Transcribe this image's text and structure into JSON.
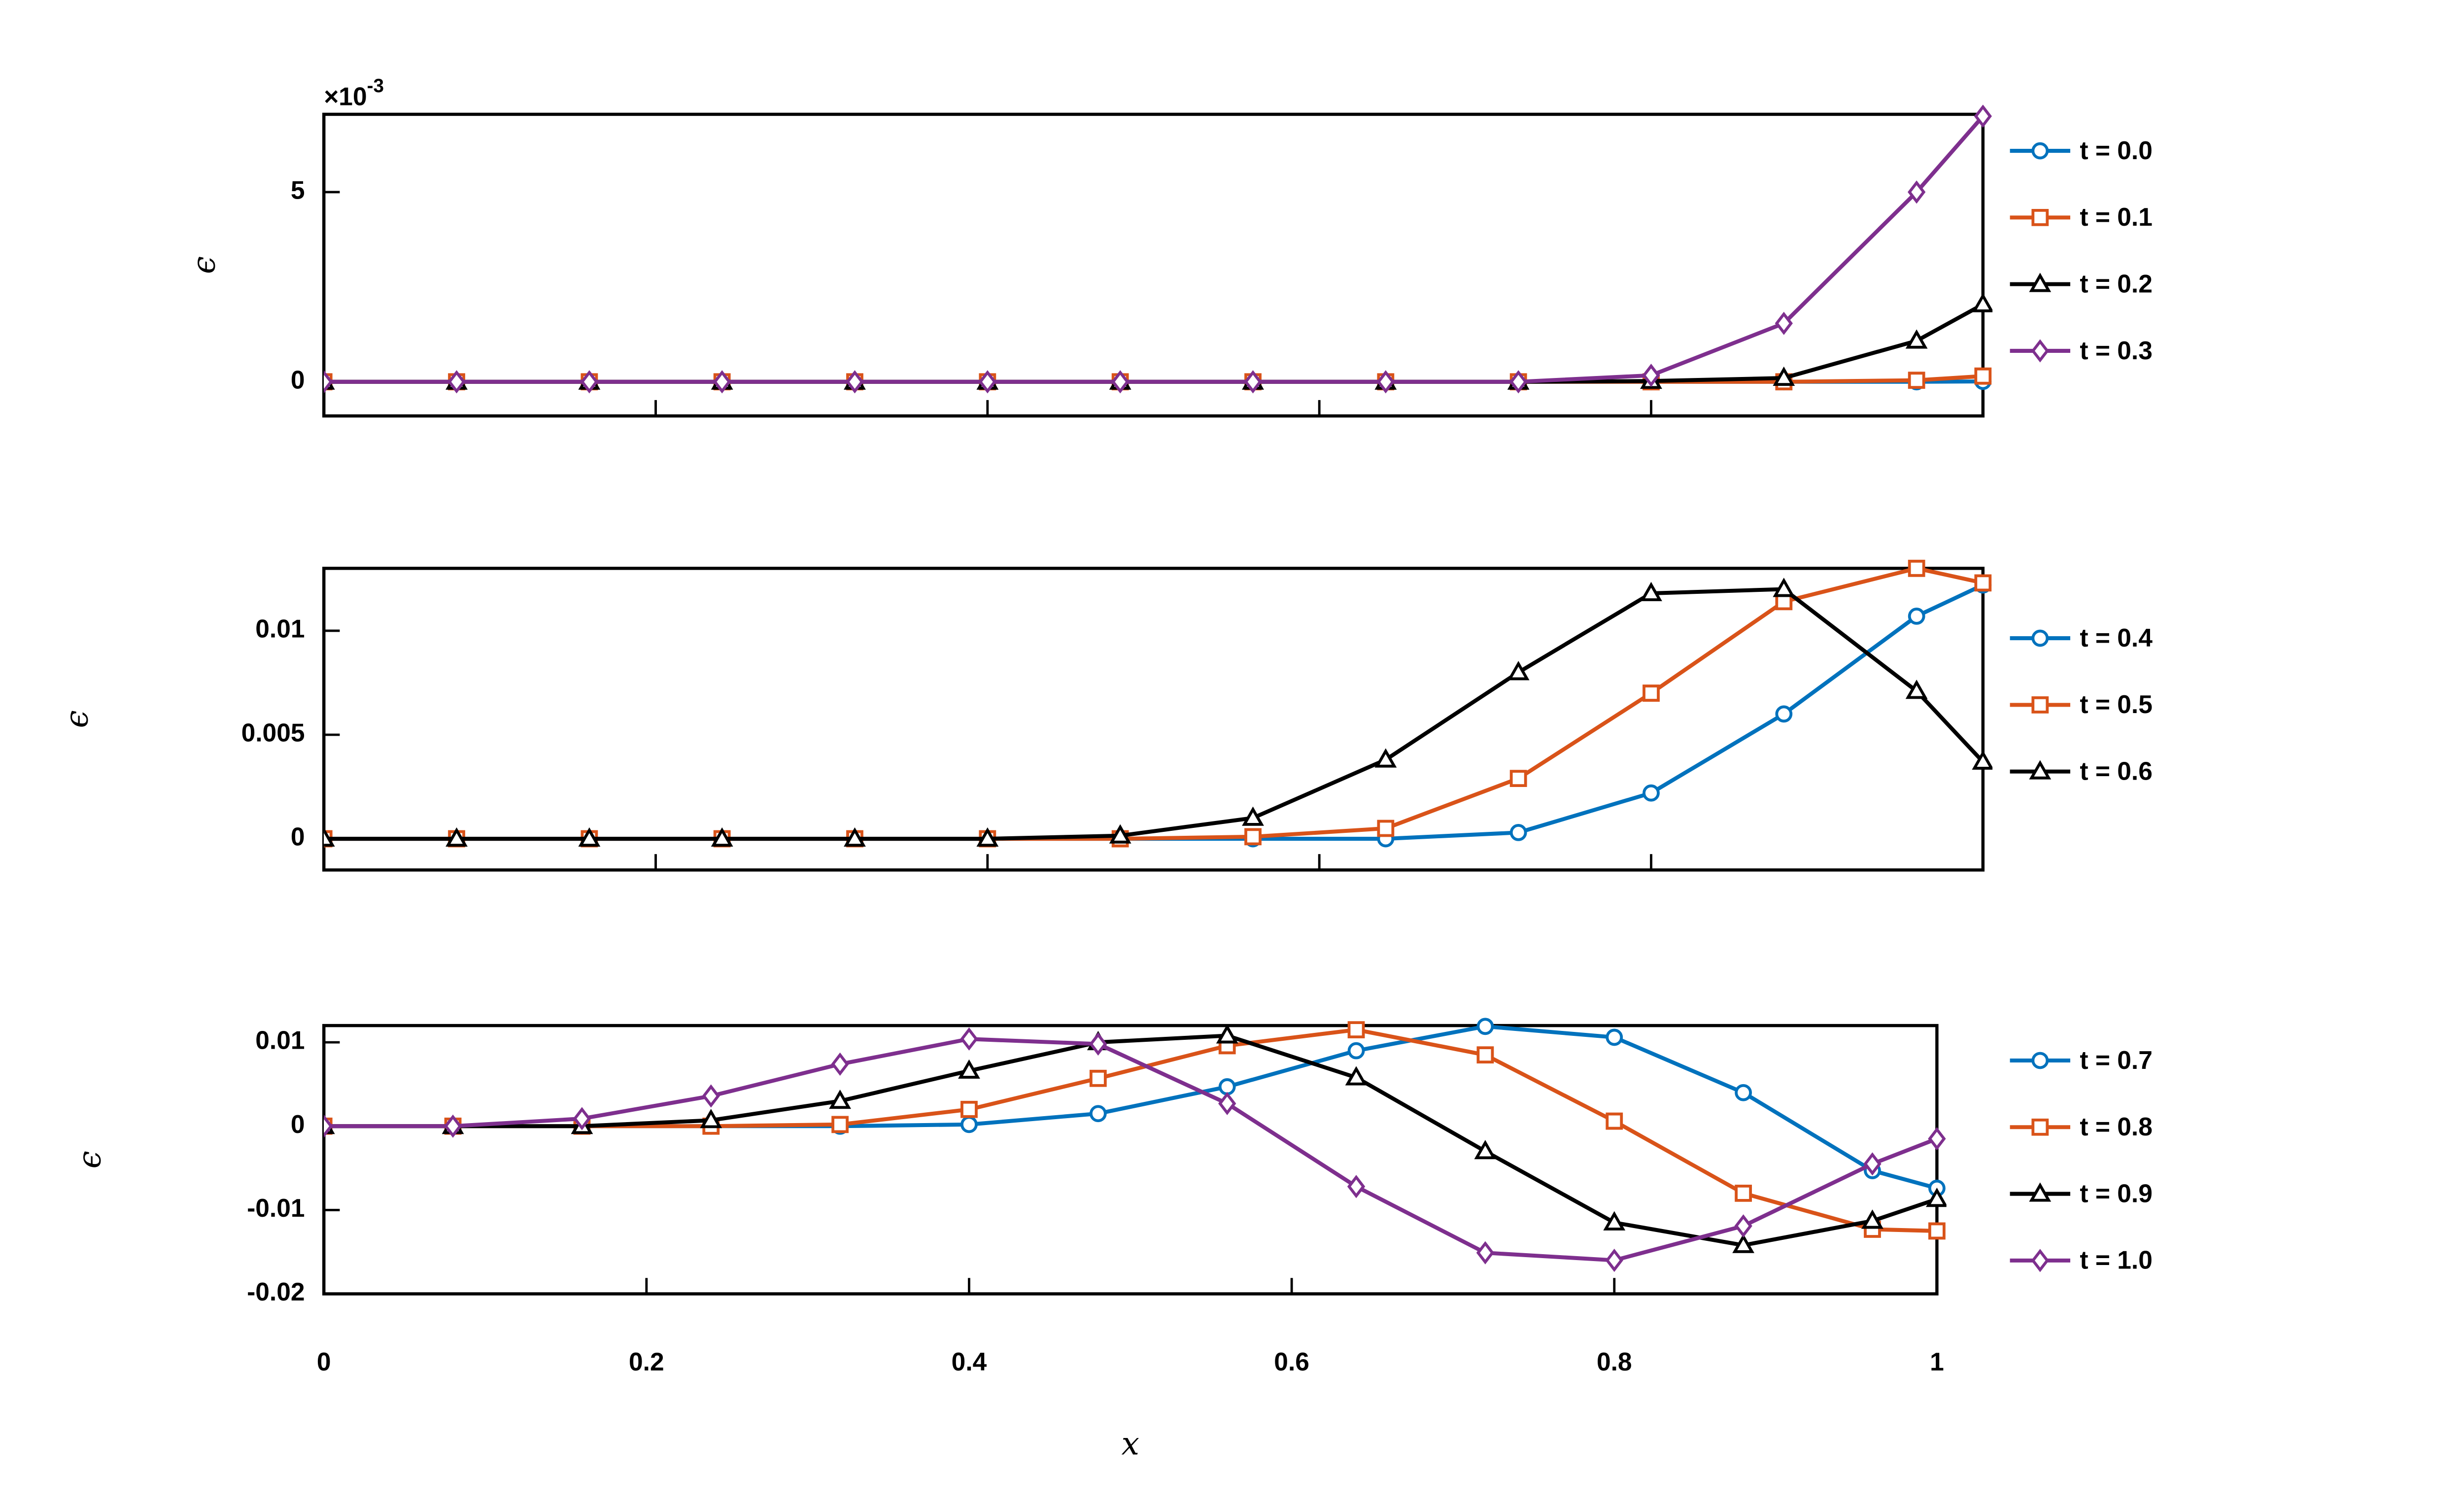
{
  "chart_data": [
    {
      "type": "line",
      "ylabel": "ϵ",
      "y_offset_text": {
        "base": "×10",
        "exponent": "-3"
      },
      "x": [
        0,
        0.08,
        0.16,
        0.24,
        0.32,
        0.4,
        0.48,
        0.56,
        0.64,
        0.72,
        0.8,
        0.88,
        0.96,
        1
      ],
      "xlim": [
        0,
        1
      ],
      "xticks": [
        0,
        0.2,
        0.4,
        0.6,
        0.8,
        1
      ],
      "show_xtick_labels": false,
      "ylim": [
        -0.9,
        7.05
      ],
      "yticks": [
        0,
        5
      ],
      "grid": false,
      "legend": "outside-right",
      "series": [
        {
          "name": "t = 0.0",
          "color": "#0072BD",
          "marker": "circle",
          "values": [
            0,
            0,
            0,
            0,
            0,
            0,
            0,
            0,
            0,
            0,
            0,
            0,
            0,
            0.01
          ]
        },
        {
          "name": "t = 0.1",
          "color": "#D95319",
          "marker": "square",
          "values": [
            0,
            0,
            0,
            0,
            0,
            0,
            0,
            0,
            0,
            0,
            0,
            0,
            0.04,
            0.15
          ]
        },
        {
          "name": "t = 0.2",
          "color": "#000000",
          "marker": "triangle",
          "values": [
            0,
            0,
            0,
            0,
            0,
            0,
            0,
            0,
            0,
            0,
            0.02,
            0.1,
            1.08,
            2.04
          ]
        },
        {
          "name": "t = 0.3",
          "color": "#7E2F8E",
          "marker": "diamond",
          "values": [
            0,
            0,
            0,
            0,
            0,
            0,
            0,
            0,
            0,
            0,
            0.17,
            1.54,
            5.0,
            7.0
          ]
        }
      ]
    },
    {
      "type": "line",
      "ylabel": "ϵ",
      "x": [
        0,
        0.08,
        0.16,
        0.24,
        0.32,
        0.4,
        0.48,
        0.56,
        0.64,
        0.72,
        0.8,
        0.88,
        0.96,
        1
      ],
      "xlim": [
        0,
        1
      ],
      "xticks": [
        0,
        0.2,
        0.4,
        0.6,
        0.8,
        1
      ],
      "show_xtick_labels": false,
      "ylim": [
        -0.0015,
        0.013
      ],
      "yticks": [
        0,
        0.005,
        0.01
      ],
      "grid": false,
      "legend": "outside-right",
      "series": [
        {
          "name": "t = 0.4",
          "color": "#0072BD",
          "marker": "circle",
          "values": [
            0,
            0,
            0,
            0,
            0,
            0,
            0,
            0,
            0,
            0.0003,
            0.0022,
            0.006,
            0.0107,
            0.0122
          ]
        },
        {
          "name": "t = 0.5",
          "color": "#D95319",
          "marker": "square",
          "values": [
            0,
            0,
            0,
            0,
            0,
            0,
            0,
            0.0001,
            0.0005,
            0.0029,
            0.007,
            0.0114,
            0.013,
            0.0123
          ]
        },
        {
          "name": "t = 0.6",
          "color": "#000000",
          "marker": "triangle",
          "values": [
            0,
            0,
            0,
            0,
            0,
            0,
            0.00015,
            0.001,
            0.0038,
            0.008,
            0.0118,
            0.012,
            0.0071,
            0.0037
          ]
        }
      ]
    },
    {
      "type": "line",
      "ylabel": "ϵ",
      "xlabel": "x",
      "x": [
        0,
        0.08,
        0.16,
        0.24,
        0.32,
        0.4,
        0.48,
        0.56,
        0.64,
        0.72,
        0.8,
        0.88,
        0.96,
        1
      ],
      "xlim": [
        0,
        1
      ],
      "xticks": [
        0,
        0.2,
        0.4,
        0.6,
        0.8,
        1
      ],
      "show_xtick_labels": true,
      "ylim": [
        -0.02,
        0.012
      ],
      "yticks": [
        -0.02,
        -0.01,
        0,
        0.01
      ],
      "grid": false,
      "legend": "outside-right",
      "series": [
        {
          "name": "t = 0.7",
          "color": "#0072BD",
          "marker": "circle",
          "values": [
            0,
            0,
            0,
            0,
            0,
            0.0002,
            0.0015,
            0.0047,
            0.009,
            0.0119,
            0.0106,
            0.004,
            -0.0053,
            -0.0074
          ]
        },
        {
          "name": "t = 0.8",
          "color": "#D95319",
          "marker": "square",
          "values": [
            0,
            0,
            0,
            0,
            0.0002,
            0.002,
            0.0057,
            0.0096,
            0.0115,
            0.0085,
            0.0006,
            -0.008,
            -0.0123,
            -0.0125
          ]
        },
        {
          "name": "t = 0.9",
          "color": "#000000",
          "marker": "triangle",
          "values": [
            0,
            0,
            0,
            0.0007,
            0.003,
            0.0066,
            0.01,
            0.0108,
            0.0058,
            -0.003,
            -0.0115,
            -0.0142,
            -0.0113,
            -0.0087
          ]
        },
        {
          "name": "t = 1.0",
          "color": "#7E2F8E",
          "marker": "diamond",
          "values": [
            0,
            0,
            0.0009,
            0.0036,
            0.0074,
            0.0104,
            0.0098,
            0.0027,
            -0.0072,
            -0.0151,
            -0.016,
            -0.0119,
            -0.0045,
            -0.0015
          ]
        }
      ]
    }
  ]
}
